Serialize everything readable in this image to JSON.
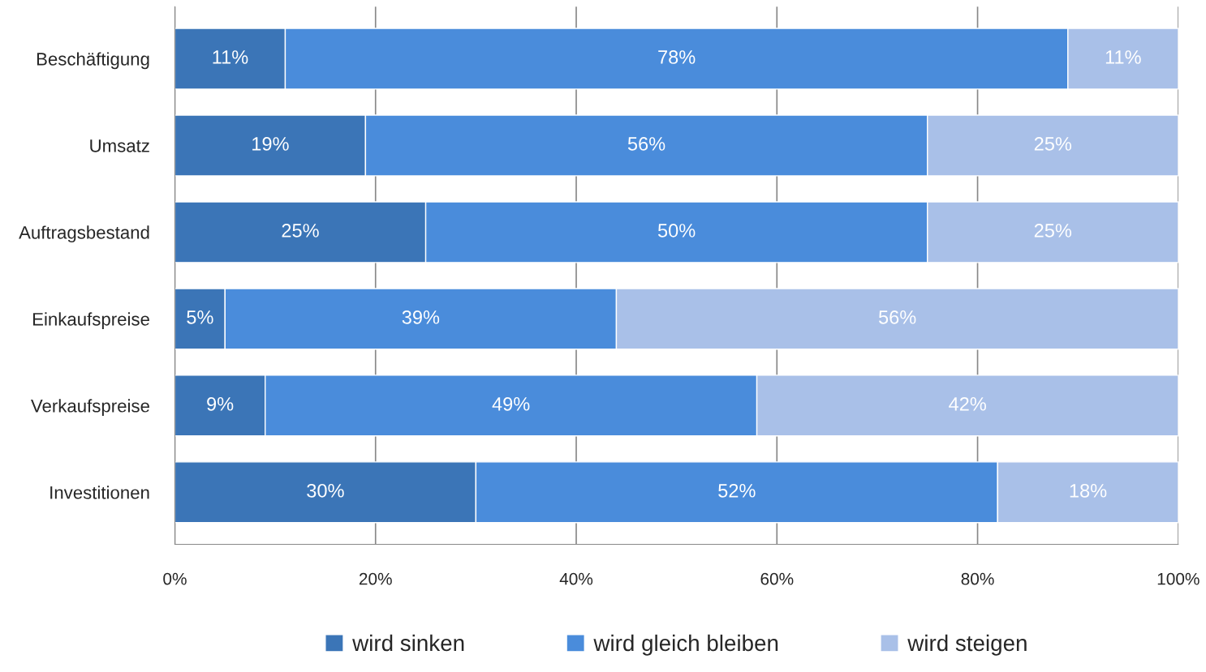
{
  "chart_data": {
    "type": "bar",
    "orientation": "horizontal",
    "stacked": true,
    "categories": [
      "Beschäftigung",
      "Umsatz",
      "Auftragsbestand",
      "Einkaufspreise",
      "Verkaufspreise",
      "Investitionen"
    ],
    "series": [
      {
        "name": "wird sinken",
        "color": "#3b75b7",
        "values": [
          11,
          19,
          25,
          5,
          9,
          30
        ],
        "value_labels": [
          "11%",
          "19%",
          "25%",
          "5%",
          "9%",
          "30%"
        ]
      },
      {
        "name": "wird gleich bleiben",
        "color": "#4a8cdb",
        "values": [
          78,
          56,
          50,
          39,
          49,
          52
        ],
        "value_labels": [
          "78%",
          "56%",
          "50%",
          "39%",
          "49%",
          "52%"
        ]
      },
      {
        "name": "wird steigen",
        "color": "#a9c0e8",
        "values": [
          11,
          25,
          25,
          56,
          42,
          18
        ],
        "value_labels": [
          "11%",
          "25%",
          "25%",
          "56%",
          "42%",
          "18%"
        ]
      }
    ],
    "xlim": [
      0,
      100
    ],
    "xticks": [
      {
        "value": 0,
        "label": "0%"
      },
      {
        "value": 20,
        "label": "20%"
      },
      {
        "value": 40,
        "label": "40%"
      },
      {
        "value": 60,
        "label": "60%"
      },
      {
        "value": 80,
        "label": "80%"
      },
      {
        "value": 100,
        "label": "100%"
      }
    ],
    "grid": "x",
    "legend": "bottom"
  }
}
